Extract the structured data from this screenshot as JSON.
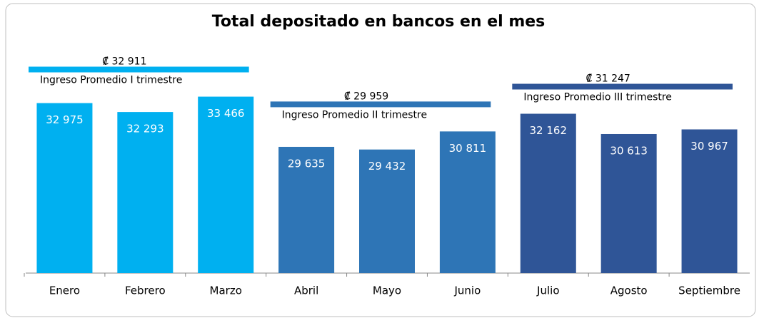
{
  "chart_data": {
    "type": "bar",
    "title": "Total depositado en bancos en el mes",
    "categories": [
      "Enero",
      "Febrero",
      "Marzo",
      "Abril",
      "Mayo",
      "Junio",
      "Julio",
      "Agosto",
      "Septiembre"
    ],
    "values": [
      32975,
      32293,
      33466,
      29635,
      29432,
      30811,
      32162,
      30613,
      30967
    ],
    "value_labels": [
      "32 975",
      "32 293",
      "33 466",
      "29 635",
      "29 432",
      "30 811",
      "32 162",
      "30 613",
      "30 967"
    ],
    "colors": [
      "#00b0f0",
      "#00b0f0",
      "#00b0f0",
      "#2e75b6",
      "#2e75b6",
      "#2e75b6",
      "#2f5597",
      "#2f5597",
      "#2f5597"
    ],
    "ylim": [
      20000,
      36000
    ],
    "averages": [
      {
        "label": "Ingreso Promedio I trimestre",
        "value": 32911,
        "value_label": "₡ 32 911",
        "color": "#00b0f0"
      },
      {
        "label": "Ingreso Promedio II trimestre",
        "value": 29959,
        "value_label": "₡ 29 959",
        "color": "#2e75b6"
      },
      {
        "label": "Ingreso Promedio III trimestre",
        "value": 31247,
        "value_label": "₡ 31 247",
        "color": "#2f5597"
      }
    ]
  }
}
